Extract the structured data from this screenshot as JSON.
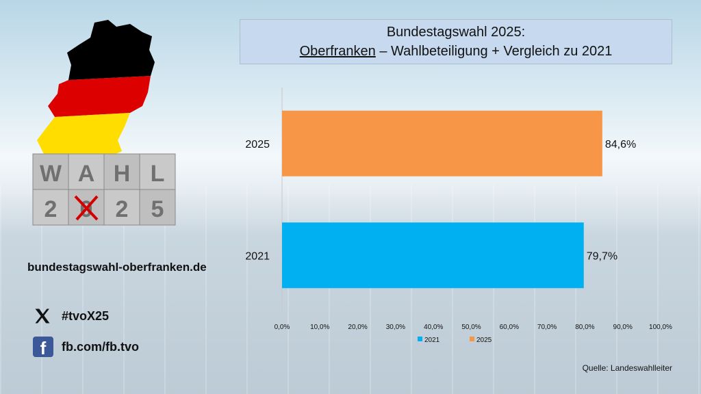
{
  "title": {
    "line1": "Bundestagswahl 2025:",
    "region": "Oberfranken",
    "line2_rest": " – Wahlbeteiligung + Vergleich zu 2021"
  },
  "chart_data": {
    "type": "bar",
    "orientation": "horizontal",
    "categories": [
      "2025",
      "2021"
    ],
    "series": [
      {
        "name": "2021",
        "values": [
          null,
          79.7
        ],
        "color": "#00b0f0"
      },
      {
        "name": "2025",
        "values": [
          84.6,
          null
        ],
        "color": "#f79646"
      }
    ],
    "data_labels": [
      "84,6%",
      "79,7%"
    ],
    "x_ticks": [
      "0,0%",
      "10,0%",
      "20,0%",
      "30,0%",
      "40,0%",
      "50,0%",
      "60,0%",
      "70,0%",
      "80,0%",
      "90,0%",
      "100,0%"
    ],
    "xlim": [
      0,
      100
    ],
    "grid": false,
    "legend": "bottom"
  },
  "logo": {
    "row1": [
      "W",
      "A",
      "H",
      "L"
    ],
    "row2": [
      "2",
      "0",
      "2",
      "5"
    ]
  },
  "site_url": "bundestagswahl-oberfranken.de",
  "social": {
    "x_handle": "#tvoX25",
    "fb_page": "fb.com/fb.tvo",
    "fb_letter": "f"
  },
  "source": "Quelle: Landeswahlleiter",
  "colors": {
    "series_2021": "#00b0f0",
    "series_2025": "#f79646",
    "title_bg": "#c6d9ef"
  }
}
